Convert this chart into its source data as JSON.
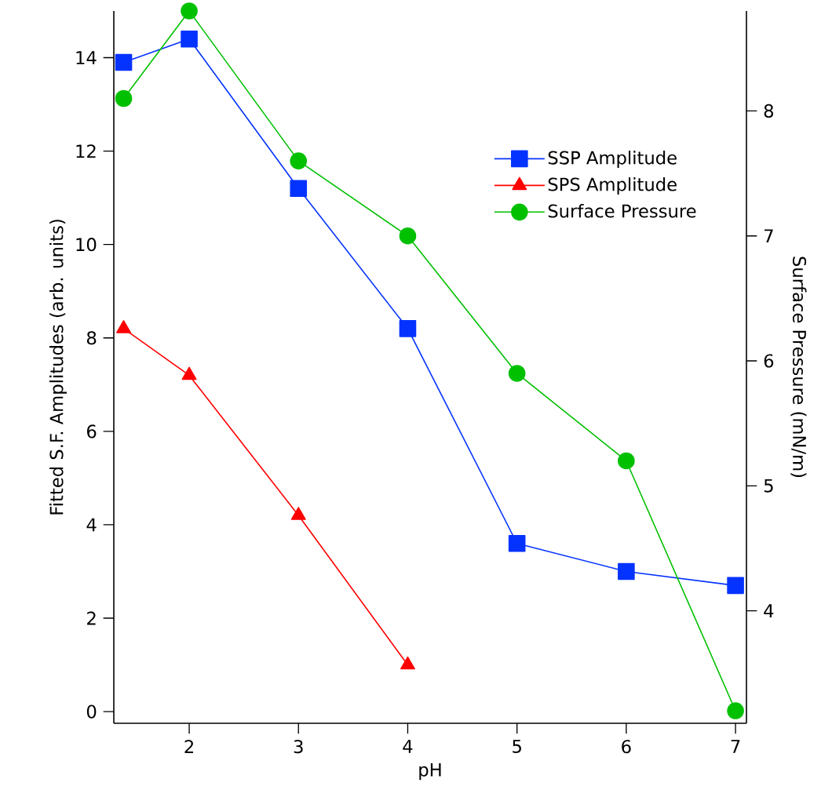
{
  "chart_data": {
    "type": "line",
    "xlabel": "pH",
    "ylabel": "Fitted S.F. Amplitudes (arb. units)",
    "y2label": "Surface Pressure (mN/m)",
    "xlim": [
      1.31,
      7.1
    ],
    "xticks": [
      2,
      3,
      4,
      5,
      6,
      7
    ],
    "ylim": [
      -0.25,
      15
    ],
    "yticks": [
      0,
      2,
      4,
      6,
      8,
      10,
      12,
      14
    ],
    "y2lim": [
      3.1,
      8.8
    ],
    "y2ticks": [
      4,
      5,
      6,
      7,
      8
    ],
    "grid": false,
    "legend": "top right",
    "line_style": "solid",
    "series": [
      {
        "name": "SSP Amplitude",
        "color": "#0433ff",
        "marker": "square",
        "x": [
          1.4,
          2,
          3,
          4,
          5,
          6,
          7
        ],
        "values": [
          13.9,
          14.4,
          11.2,
          8.2,
          3.6,
          3.0,
          2.7
        ]
      },
      {
        "name": "SPS Amplitude",
        "color": "#ff0000",
        "marker": "triangle",
        "x": [
          1.4,
          2,
          3,
          4
        ],
        "values": [
          8.2,
          7.2,
          4.2,
          1.0
        ]
      },
      {
        "name": "Surface Pressure",
        "color": "#00c000",
        "marker": "circle",
        "axis": "y2",
        "x": [
          1.4,
          2,
          3,
          4,
          5,
          6,
          7
        ],
        "values": [
          8.1,
          8.8,
          7.6,
          7.0,
          5.9,
          5.2,
          3.2
        ]
      }
    ]
  }
}
